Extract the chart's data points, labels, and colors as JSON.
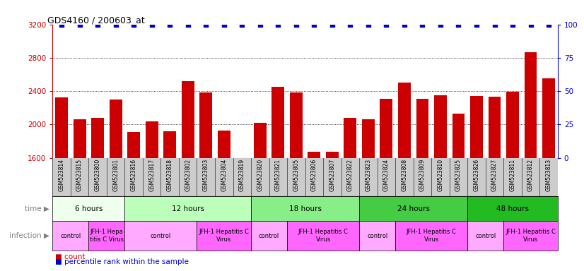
{
  "title": "GDS4160 / 200603_at",
  "samples": [
    "GSM523814",
    "GSM523815",
    "GSM523800",
    "GSM523801",
    "GSM523816",
    "GSM523817",
    "GSM523818",
    "GSM523802",
    "GSM523803",
    "GSM523804",
    "GSM523819",
    "GSM523820",
    "GSM523821",
    "GSM523805",
    "GSM523806",
    "GSM523807",
    "GSM523822",
    "GSM523823",
    "GSM523824",
    "GSM523808",
    "GSM523809",
    "GSM523810",
    "GSM523825",
    "GSM523826",
    "GSM523827",
    "GSM523811",
    "GSM523812",
    "GSM523813"
  ],
  "counts": [
    2320,
    2060,
    2080,
    2300,
    1910,
    2040,
    1920,
    2520,
    2380,
    1930,
    1600,
    2020,
    2450,
    2380,
    1670,
    1670,
    2080,
    2060,
    2310,
    2500,
    2310,
    2350,
    2130,
    2340,
    2330,
    2390,
    2870,
    2550
  ],
  "percentile": [
    100,
    100,
    100,
    100,
    100,
    100,
    100,
    100,
    100,
    100,
    100,
    100,
    100,
    100,
    100,
    100,
    100,
    100,
    100,
    100,
    100,
    100,
    100,
    100,
    100,
    100,
    100,
    100
  ],
  "ylim_left": [
    1600,
    3200
  ],
  "ylim_right": [
    0,
    100
  ],
  "yticks_left": [
    1600,
    2000,
    2400,
    2800,
    3200
  ],
  "yticks_right": [
    0,
    25,
    50,
    75,
    100
  ],
  "bar_color": "#cc0000",
  "dot_color": "#0000cc",
  "background_color": "#ffffff",
  "time_groups": [
    {
      "label": "6 hours",
      "start": 0,
      "end": 4,
      "color": "#eeffee"
    },
    {
      "label": "12 hours",
      "start": 4,
      "end": 11,
      "color": "#bbffbb"
    },
    {
      "label": "18 hours",
      "start": 11,
      "end": 17,
      "color": "#88ee88"
    },
    {
      "label": "24 hours",
      "start": 17,
      "end": 23,
      "color": "#44cc44"
    },
    {
      "label": "48 hours",
      "start": 23,
      "end": 28,
      "color": "#22bb22"
    }
  ],
  "infection_groups": [
    {
      "label": "control",
      "start": 0,
      "end": 2,
      "color": "#ffaaff"
    },
    {
      "label": "JFH-1 Hepa\ntitis C Virus",
      "start": 2,
      "end": 4,
      "color": "#ff66ff"
    },
    {
      "label": "control",
      "start": 4,
      "end": 8,
      "color": "#ffaaff"
    },
    {
      "label": "JFH-1 Hepatitis C\nVirus",
      "start": 8,
      "end": 11,
      "color": "#ff66ff"
    },
    {
      "label": "control",
      "start": 11,
      "end": 13,
      "color": "#ffaaff"
    },
    {
      "label": "JFH-1 Hepatitis C\nVirus",
      "start": 13,
      "end": 17,
      "color": "#ff66ff"
    },
    {
      "label": "control",
      "start": 17,
      "end": 19,
      "color": "#ffaaff"
    },
    {
      "label": "JFH-1 Hepatitis C\nVirus",
      "start": 19,
      "end": 23,
      "color": "#ff66ff"
    },
    {
      "label": "control",
      "start": 23,
      "end": 25,
      "color": "#ffaaff"
    },
    {
      "label": "JFH-1 Hepatitis C\nVirus",
      "start": 25,
      "end": 28,
      "color": "#ff66ff"
    }
  ],
  "sample_bg_color": "#cccccc",
  "legend_count_color": "#cc0000",
  "legend_percentile_color": "#0000cc",
  "time_label": "time",
  "infection_label": "infection"
}
